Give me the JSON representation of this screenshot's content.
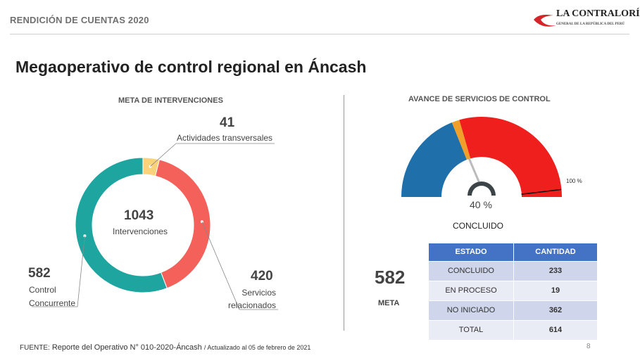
{
  "header": {
    "title": "RENDICIÓN DE CUENTAS 2020",
    "logo_text": "LA CONTRALORÍA",
    "logo_subtext": "GENERAL DE LA REPÚBLICA DEL PERÚ"
  },
  "page_title": "Megaoperativo de control regional en Áncash",
  "donut": {
    "section_title": "META DE INTERVENCIONES",
    "total_value": "1043",
    "total_label": "Intervenciones",
    "segments": [
      {
        "value": 41,
        "value_text": "41",
        "label": "Actividades transversales",
        "color": "#f9d27a"
      },
      {
        "value": 420,
        "value_text": "420",
        "label_line1": "Servicios",
        "label_line2": "relacionados",
        "color": "#f4605a"
      },
      {
        "value": 582,
        "value_text": "582",
        "label_line1": "Control",
        "label_line2": "Concurrente",
        "color": "#1ea5a0"
      }
    ]
  },
  "gauge": {
    "section_title": "AVANCE DE SERVICIOS DE CONTROL",
    "percent_text": "40 %",
    "percent": 40,
    "max_label": "100 %",
    "caption": "CONCLUIDO",
    "segments": [
      {
        "value": 233,
        "color": "#1f6fab"
      },
      {
        "value": 19,
        "color": "#f0a02a"
      },
      {
        "value": 362,
        "color": "#ee1f1c"
      }
    ]
  },
  "meta": {
    "value": "582",
    "label": "META"
  },
  "table": {
    "headers": [
      "ESTADO",
      "CANTIDAD"
    ],
    "rows": [
      [
        "CONCLUIDO",
        "233"
      ],
      [
        "EN PROCESO",
        "19"
      ],
      [
        "NO INICIADO",
        "362"
      ],
      [
        "TOTAL",
        "614"
      ]
    ]
  },
  "footer": {
    "prefix": "FUENTE:",
    "source": "Reporte  del Operativo  N° 010-2020-Áncash",
    "updated": "/ Actualizado  al 05 de febrero  de 2021",
    "page": "8"
  }
}
